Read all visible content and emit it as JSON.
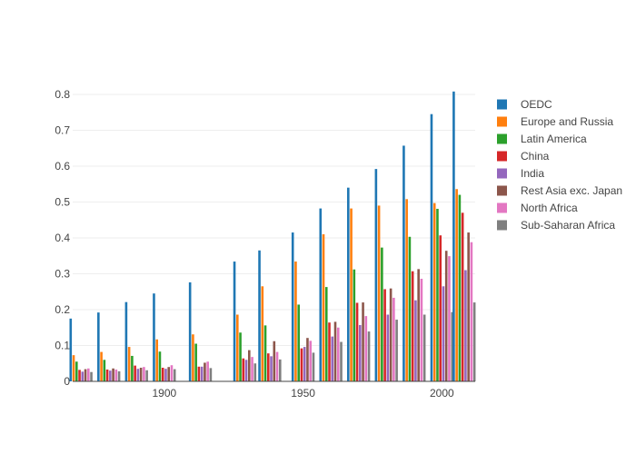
{
  "chart_data": {
    "type": "bar",
    "title": "",
    "xlabel": "",
    "ylabel": "",
    "xlim": [
      1867,
      2012
    ],
    "ylim": [
      0,
      0.81
    ],
    "x": [
      1870,
      1880,
      1890,
      1900,
      1913,
      1929,
      1938,
      1950,
      1960,
      1970,
      1980,
      1990,
      2000,
      2008
    ],
    "x_tick_labels": [
      {
        "value": 1900,
        "label": "1900"
      },
      {
        "value": 1950,
        "label": "1950"
      },
      {
        "value": 2000,
        "label": "2000"
      }
    ],
    "y_tick_labels": [
      {
        "value": 0,
        "label": "0"
      },
      {
        "value": 0.1,
        "label": "0.1"
      },
      {
        "value": 0.2,
        "label": "0.2"
      },
      {
        "value": 0.3,
        "label": "0.3"
      },
      {
        "value": 0.4,
        "label": "0.4"
      },
      {
        "value": 0.5,
        "label": "0.5"
      },
      {
        "value": 0.6,
        "label": "0.6"
      },
      {
        "value": 0.7,
        "label": "0.7"
      },
      {
        "value": 0.8,
        "label": "0.8"
      }
    ],
    "grid": true,
    "legend_position": "right",
    "series": [
      {
        "name": "OEDC",
        "color": "#1f77b4",
        "values": [
          0.175,
          0.192,
          0.221,
          0.245,
          0.276,
          0.334,
          0.365,
          0.415,
          0.482,
          0.54,
          0.592,
          0.657,
          0.745,
          0.808
        ]
      },
      {
        "name": "Europe and Russia",
        "color": "#ff7f0e",
        "values": [
          0.073,
          0.082,
          0.096,
          0.117,
          0.131,
          0.186,
          0.265,
          0.334,
          0.41,
          0.482,
          0.49,
          0.508,
          0.497,
          0.536
        ]
      },
      {
        "name": "Latin America",
        "color": "#2ca02c",
        "values": [
          0.055,
          0.06,
          0.071,
          0.083,
          0.105,
          0.136,
          0.156,
          0.214,
          0.263,
          0.312,
          0.373,
          0.403,
          0.481,
          0.52
        ]
      },
      {
        "name": "China",
        "color": "#d62728",
        "values": [
          0.032,
          0.033,
          0.044,
          0.038,
          0.041,
          0.064,
          0.078,
          0.092,
          0.164,
          0.219,
          0.257,
          0.307,
          0.407,
          0.47
        ]
      },
      {
        "name": "India",
        "color": "#9467bd",
        "values": [
          0.027,
          0.03,
          0.035,
          0.035,
          0.041,
          0.06,
          0.07,
          0.096,
          0.125,
          0.157,
          0.186,
          0.226,
          0.265,
          0.31
        ]
      },
      {
        "name": "Rest Asia exc. Japan",
        "color": "#8c564b",
        "values": [
          0.034,
          0.036,
          0.038,
          0.04,
          0.052,
          0.087,
          0.112,
          0.121,
          0.166,
          0.22,
          0.259,
          0.313,
          0.364,
          0.415
        ]
      },
      {
        "name": "North Africa",
        "color": "#e377c2",
        "values": [
          0.036,
          0.033,
          0.04,
          0.045,
          0.055,
          0.068,
          0.082,
          0.113,
          0.15,
          0.182,
          0.233,
          0.286,
          0.349,
          0.388
        ]
      },
      {
        "name": "Sub-Saharan Africa",
        "color": "#7f7f7f",
        "values": [
          0.026,
          0.028,
          0.031,
          0.034,
          0.037,
          0.05,
          0.061,
          0.08,
          0.11,
          0.139,
          0.172,
          0.186,
          0.193,
          0.22
        ]
      }
    ]
  }
}
